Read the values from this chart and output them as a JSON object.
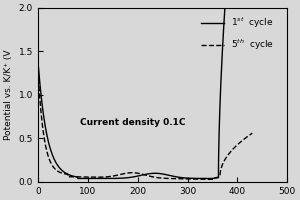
{
  "ylabel": "Potential vs. K/K⁺ (V",
  "annotation": "Current density 0.1C",
  "xlim": [
    0,
    500
  ],
  "ylim": [
    0.0,
    2.0
  ],
  "yticks": [
    0.0,
    0.5,
    1.0,
    1.5,
    2.0
  ],
  "xticks": [
    0,
    100,
    200,
    300,
    400,
    500
  ],
  "legend_1st": "1$^{st}$  cycle",
  "legend_5th": "5$^{th}$  cycle",
  "bg_color": "#d8d8d8",
  "line_color": "black"
}
